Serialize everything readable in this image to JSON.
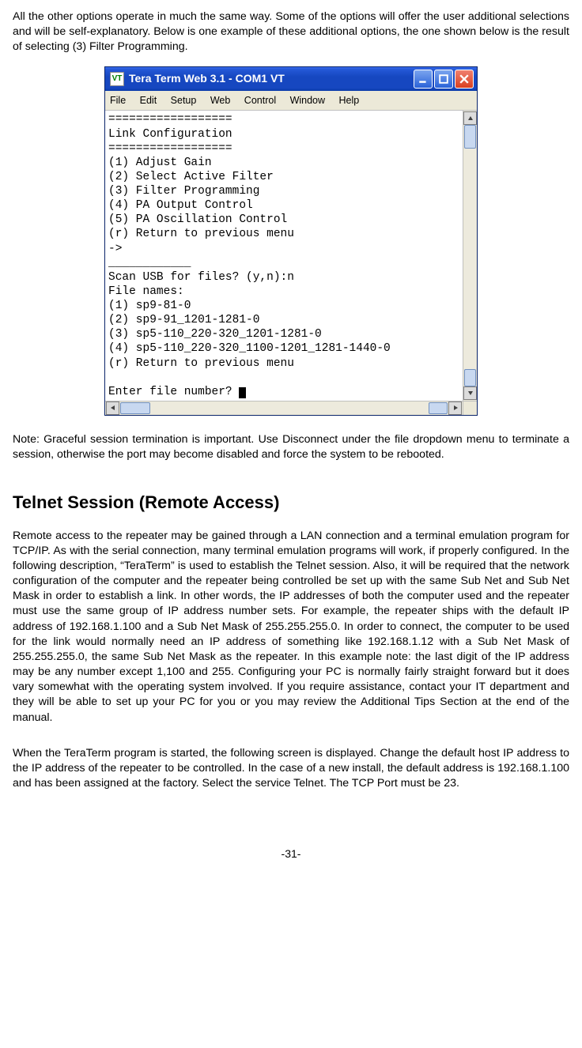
{
  "intro_text": "All the other options operate in much the same way. Some of the options will offer the user additional selections and will be self-explanatory. Below is one example of these additional options, the one shown below is the result of selecting (3) Filter Programming.",
  "window": {
    "title": "Tera Term Web 3.1 - COM1 VT",
    "app_icon_text": "VT",
    "menus": [
      "File",
      "Edit",
      "Setup",
      "Web",
      "Control",
      "Window",
      "Help"
    ],
    "terminal_lines": [
      "==================",
      "Link Configuration",
      "==================",
      "(1) Adjust Gain",
      "(2) Select Active Filter",
      "(3) Filter Programming",
      "(4) PA Output Control",
      "(5) PA Oscillation Control",
      "(r) Return to previous menu",
      "->",
      "____________",
      "Scan USB for files? (y,n):n",
      "File names:",
      "(1) sp9-81-0",
      "(2) sp9-91_1201-1281-0",
      "(3) sp5-110_220-320_1201-1281-0",
      "(4) sp5-110_220-320_1100-1201_1281-1440-0",
      "(r) Return to previous menu",
      "",
      "Enter file number? "
    ],
    "colors": {
      "titlebar_gradient_top": "#3a6ef0",
      "titlebar_gradient_bottom": "#0a3aa8",
      "chrome_bg": "#ece9d8",
      "close_button": "#d84020",
      "scrollbar_thumb": "#c8d8f0"
    }
  },
  "note_text": "Note: Graceful session termination is important. Use Disconnect under the file dropdown menu to terminate a session, otherwise the port may become disabled and force the system to be rebooted.",
  "section_heading": "Telnet Session (Remote Access)",
  "telnet_para1": "Remote access to the repeater may be gained through a LAN connection and a terminal emulation program for TCP/IP. As with the serial connection, many terminal emulation programs will work, if properly configured.  In the following description, “TeraTerm” is used to establish the Telnet session. Also, it will be required that the network configuration of the computer and the repeater being controlled be set up with the same Sub Net and Sub Net Mask in order to establish a link. In other words, the IP addresses of both the computer used and the repeater must use the same group of IP address number sets. For example, the repeater ships with the default IP address of 192.168.1.100 and a Sub Net Mask of 255.255.255.0. In order to connect, the computer to be used for the link would normally need an IP address of something like 192.168.1.12 with a Sub Net Mask of 255.255.255.0, the same Sub Net Mask as the repeater. In this example note: the last digit of the IP address may be any number except 1,100 and 255. Configuring your PC is normally fairly straight forward but it does vary somewhat with the operating system involved.  If you require assistance, contact your IT department and they will be able to set up your PC for you or you may review the Additional Tips Section at the end of the manual.",
  "telnet_para2": "When the TeraTerm program is started, the following screen is displayed. Change the default host IP address to the IP address of the repeater to be controlled. In the case of a new install, the default address is 192.168.1.100 and has been assigned at the factory. Select the service Telnet. The TCP Port must be 23.",
  "page_number": "-31-"
}
